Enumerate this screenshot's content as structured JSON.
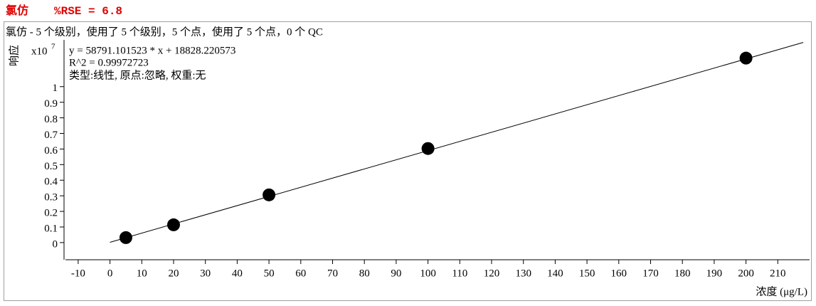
{
  "chart_data": {
    "type": "scatter",
    "title": "氯仿",
    "rse_label": "%RSE = 6.8",
    "subtitle": "氯仿 - 5 个级别，使用了 5 个级别，5 个点，使用了 5 个点，0 个 QC",
    "y_label": "响应",
    "y_scale_base": "x10",
    "y_scale_exponent": "7",
    "equation_lines": [
      "y = 58791.101523 * x  + 18828.220573",
      "R^2 = 0.99972723",
      "类型:线性, 原点:忽略, 权重:无"
    ],
    "x_label": "浓度 (μg/L)",
    "x": [
      5,
      20,
      50,
      100,
      200
    ],
    "values": [
      0.032,
      0.114,
      0.306,
      0.603,
      1.183
    ],
    "color": "#000000",
    "fit_line": {
      "x": [
        0,
        218
      ],
      "values": [
        0.0019,
        1.2835
      ],
      "color": "#000000"
    },
    "xlim": [
      -14,
      220
    ],
    "xticks": [
      -10,
      0,
      10,
      20,
      30,
      40,
      50,
      60,
      70,
      80,
      90,
      100,
      110,
      120,
      130,
      140,
      150,
      160,
      170,
      180,
      190,
      200,
      210
    ],
    "ylim": [
      -0.11,
      1.3
    ],
    "yticks": [
      0,
      0.1,
      0.2,
      0.3,
      0.4,
      0.5,
      0.6,
      0.7,
      0.8,
      0.9,
      1
    ]
  }
}
